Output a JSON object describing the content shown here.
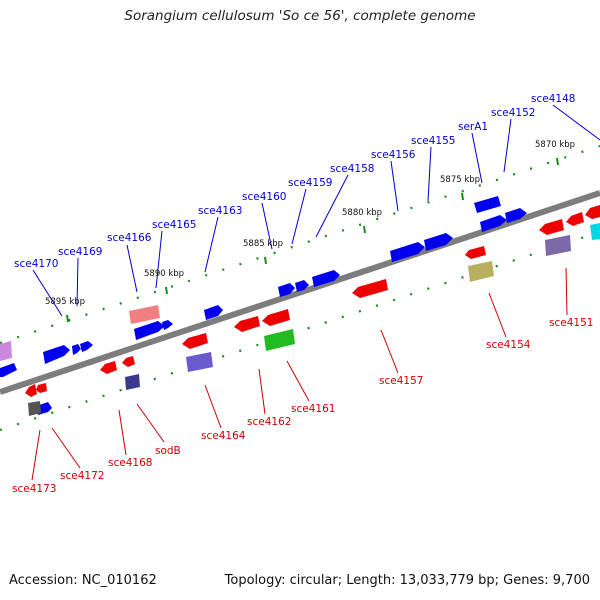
{
  "title": "Sorangium cellulosum 'So ce 56', complete genome",
  "accession_label": "Accession: NC_010162",
  "summary_label": "Topology: circular; Length: 13,033,779 bp; Genes: 9,700",
  "colors": {
    "forward_strand": "#0000ee",
    "reverse_strand": "#ee0000",
    "backbone": "#808080",
    "tick": "#1a8a1a",
    "top_label": "#0000cc",
    "bottom_label": "#cc0000"
  },
  "kbp_markers": [
    {
      "label": "5895 kbp",
      "kbp": 5895
    },
    {
      "label": "5890 kbp",
      "kbp": 5890
    },
    {
      "label": "5885 kbp",
      "kbp": 5885
    },
    {
      "label": "5880 kbp",
      "kbp": 5880
    },
    {
      "label": "5875 kbp",
      "kbp": 5875
    },
    {
      "label": "5870 kbp",
      "kbp": 5870
    }
  ],
  "top_genes": [
    "sce4170",
    "sce4169",
    "sce4166",
    "sce4165",
    "sce4163",
    "sce4160",
    "sce4159",
    "sce4158",
    "sce4156",
    "sce4155",
    "serA1",
    "sce4152",
    "sce4148"
  ],
  "bottom_genes": [
    "sce4173",
    "sce4172",
    "sce4168",
    "sodB",
    "sce4164",
    "sce4162",
    "sce4161",
    "sce4157",
    "sce4154",
    "sce4151"
  ]
}
